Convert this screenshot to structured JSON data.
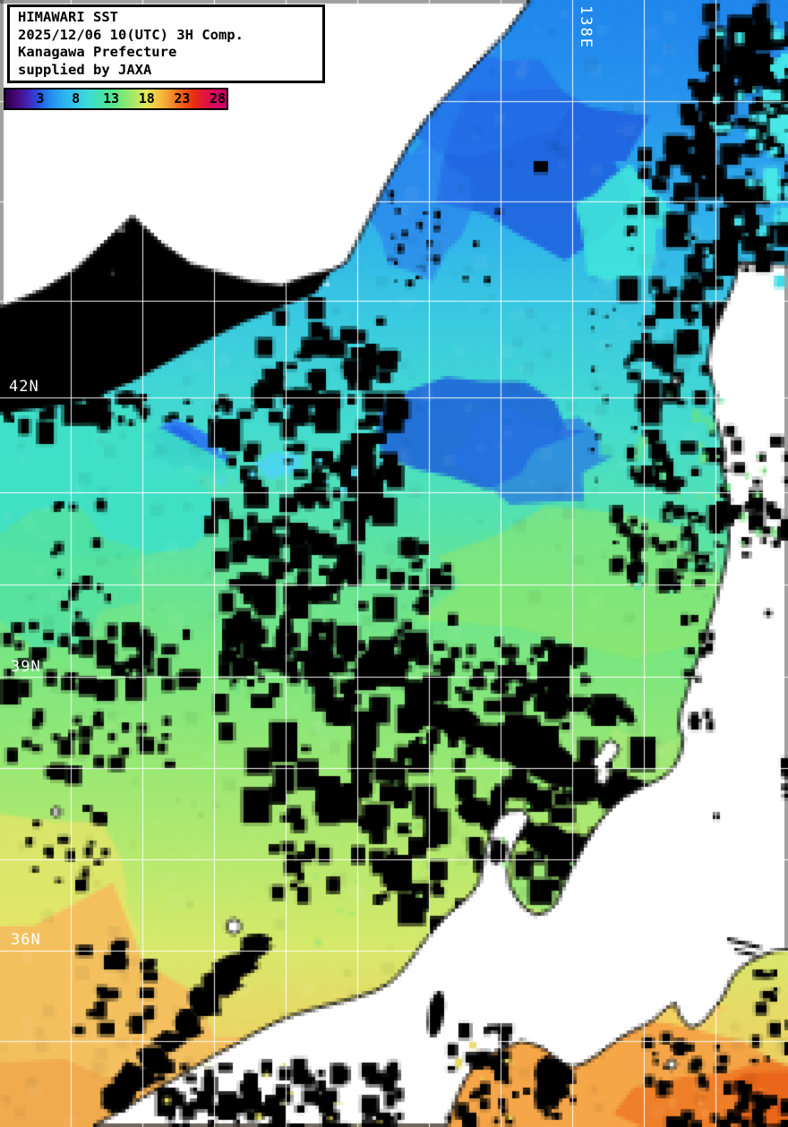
{
  "header": {
    "product": "HIMAWARI SST",
    "datetime": "2025/12/06 10(UTC) 3H Comp.",
    "region": "Kanagawa Prefecture",
    "credit": "supplied by JAXA"
  },
  "colorbar": {
    "tick_labels": [
      "3",
      "8",
      "13",
      "18",
      "23",
      "28"
    ],
    "gradient_stops": [
      [
        0,
        "#28004a"
      ],
      [
        0.05,
        "#460878"
      ],
      [
        0.1,
        "#4422b4"
      ],
      [
        0.14,
        "#2e46d8"
      ],
      [
        0.161,
        "#1e62e8"
      ],
      [
        0.2,
        "#2388ee"
      ],
      [
        0.25,
        "#2aaaf0"
      ],
      [
        0.32,
        "#34c8e8"
      ],
      [
        0.38,
        "#3cdcd4"
      ],
      [
        0.43,
        "#46e2ae"
      ],
      [
        0.478,
        "#52e58e"
      ],
      [
        0.53,
        "#7ae878"
      ],
      [
        0.58,
        "#a8e868"
      ],
      [
        0.636,
        "#e4e858"
      ],
      [
        0.68,
        "#f2cc48"
      ],
      [
        0.73,
        "#f4a434"
      ],
      [
        0.794,
        "#f0621a"
      ],
      [
        0.85,
        "#e8300e"
      ],
      [
        0.9,
        "#e0143c"
      ],
      [
        0.952,
        "#d80866"
      ],
      [
        1,
        "#cc0060"
      ]
    ]
  },
  "map": {
    "lon_label": "138E",
    "lat_labels": [
      "42N",
      "39N",
      "36N"
    ],
    "legend_semantics": {
      "black": "cloud / no data",
      "white": "land"
    },
    "colors": {
      "cloud": "#000000",
      "land": "#ffffff",
      "coastline": "#000000",
      "grid": "#ffffff",
      "label": "#ffffff",
      "ocean_stops": [
        [
          0,
          "#1f86ec"
        ],
        [
          0.09,
          "#2793ee"
        ],
        [
          0.19,
          "#2fb0ec"
        ],
        [
          0.29,
          "#3accdf"
        ],
        [
          0.38,
          "#44dcce"
        ],
        [
          0.46,
          "#54e2ae"
        ],
        [
          0.52,
          "#68e493"
        ],
        [
          0.59,
          "#7ce67f"
        ],
        [
          0.68,
          "#98e874"
        ],
        [
          0.77,
          "#bae96e"
        ],
        [
          0.84,
          "#d6e96a"
        ],
        [
          0.91,
          "#e9d866"
        ],
        [
          1,
          "#f0be58"
        ]
      ]
    }
  }
}
